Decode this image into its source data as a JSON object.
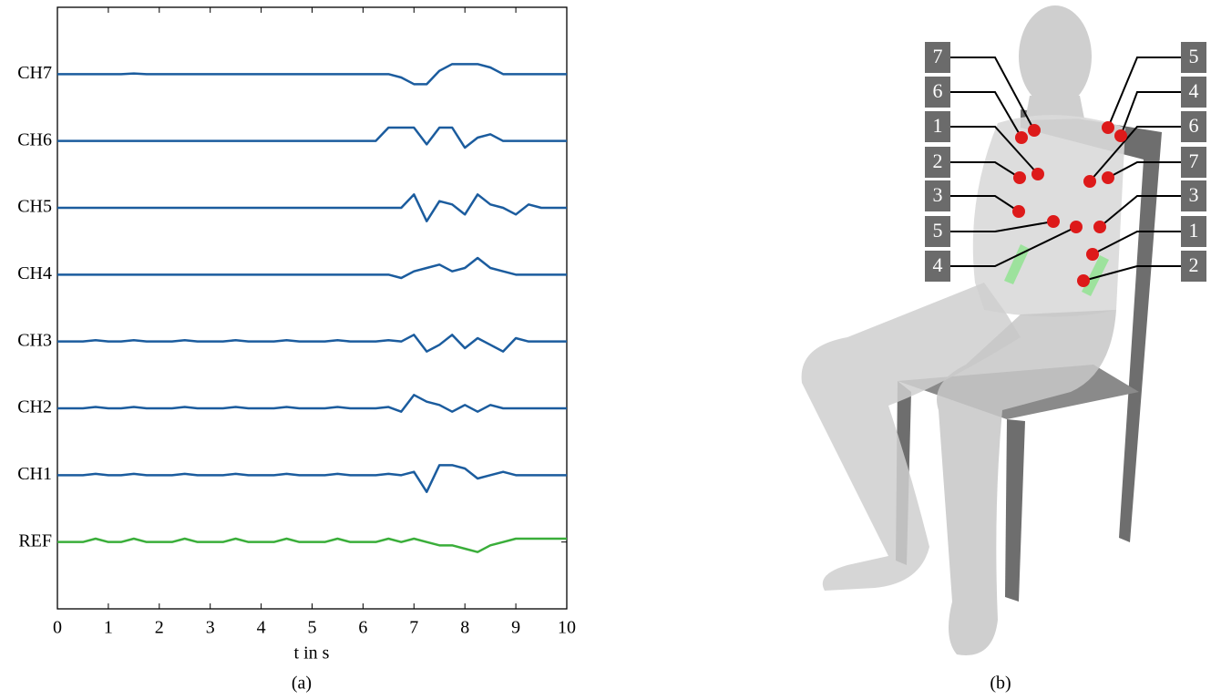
{
  "chart_data": {
    "type": "line",
    "xlabel": "t in s",
    "caption": "(a)",
    "xlim": [
      0,
      10
    ],
    "xticks": [
      0,
      1,
      2,
      3,
      4,
      5,
      6,
      7,
      8,
      9,
      10
    ],
    "ylim": [
      -1,
      8
    ],
    "yticks": [
      {
        "value": 0,
        "label": "REF"
      },
      {
        "value": 1,
        "label": "CH1"
      },
      {
        "value": 2,
        "label": "CH2"
      },
      {
        "value": 3,
        "label": "CH3"
      },
      {
        "value": 4,
        "label": "CH4"
      },
      {
        "value": 5,
        "label": "CH5"
      },
      {
        "value": 6,
        "label": "CH6"
      },
      {
        "value": 7,
        "label": "CH7"
      }
    ],
    "x": [
      0,
      0.25,
      0.5,
      0.75,
      1,
      1.25,
      1.5,
      1.75,
      2,
      2.25,
      2.5,
      2.75,
      3,
      3.25,
      3.5,
      3.75,
      4,
      4.25,
      4.5,
      4.75,
      5,
      5.25,
      5.5,
      5.75,
      6,
      6.25,
      6.5,
      6.75,
      7,
      7.25,
      7.5,
      7.75,
      8,
      8.25,
      8.5,
      8.75,
      9,
      9.25,
      9.5,
      9.75,
      10
    ],
    "series": [
      {
        "color": "#3aae3a",
        "values": [
          0,
          0,
          0,
          0.05,
          0,
          0,
          0.05,
          0,
          0,
          0,
          0.05,
          0,
          0,
          0,
          0.05,
          0,
          0,
          0,
          0.05,
          0,
          0,
          0,
          0.05,
          0,
          0,
          0,
          0.05,
          0,
          0.05,
          0,
          -0.05,
          -0.05,
          -0.1,
          -0.15,
          -0.05,
          0,
          0.05,
          0.05,
          0.05,
          0.05,
          0.05
        ]
      },
      {
        "color": "#1b5c9e",
        "values": [
          1,
          1,
          1,
          1.02,
          1,
          1,
          1.02,
          1,
          1,
          1,
          1.02,
          1,
          1,
          1,
          1.02,
          1,
          1,
          1,
          1.02,
          1,
          1,
          1,
          1.02,
          1,
          1,
          1,
          1.02,
          1,
          1.05,
          0.75,
          1.15,
          1.15,
          1.1,
          0.95,
          1,
          1.05,
          1,
          1,
          1,
          1,
          1
        ]
      },
      {
        "color": "#1b5c9e",
        "values": [
          2,
          2,
          2,
          2.02,
          2,
          2,
          2.02,
          2,
          2,
          2,
          2.02,
          2,
          2,
          2,
          2.02,
          2,
          2,
          2,
          2.02,
          2,
          2,
          2,
          2.02,
          2,
          2,
          2,
          2.02,
          1.95,
          2.2,
          2.1,
          2.05,
          1.95,
          2.05,
          1.95,
          2.05,
          2,
          2,
          2,
          2,
          2,
          2
        ]
      },
      {
        "color": "#1b5c9e",
        "values": [
          3,
          3,
          3,
          3.02,
          3,
          3,
          3.02,
          3,
          3,
          3,
          3.02,
          3,
          3,
          3,
          3.02,
          3,
          3,
          3,
          3.02,
          3,
          3,
          3,
          3.02,
          3,
          3,
          3,
          3.02,
          3,
          3.1,
          2.85,
          2.95,
          3.1,
          2.9,
          3.05,
          2.95,
          2.85,
          3.05,
          3,
          3,
          3,
          3
        ]
      },
      {
        "color": "#1b5c9e",
        "values": [
          4,
          4,
          4,
          4,
          4,
          4,
          4,
          4,
          4,
          4,
          4,
          4,
          4,
          4,
          4,
          4,
          4,
          4,
          4,
          4,
          4,
          4,
          4,
          4,
          4,
          4,
          4,
          3.95,
          4.05,
          4.1,
          4.15,
          4.05,
          4.1,
          4.25,
          4.1,
          4.05,
          4,
          4,
          4,
          4,
          4
        ]
      },
      {
        "color": "#1b5c9e",
        "values": [
          5,
          5,
          5,
          5,
          5,
          5,
          5,
          5,
          5,
          5,
          5,
          5,
          5,
          5,
          5,
          5,
          5,
          5,
          5,
          5,
          5,
          5,
          5,
          5,
          5,
          5,
          5,
          5,
          5.2,
          4.8,
          5.1,
          5.05,
          4.9,
          5.2,
          5.05,
          5,
          4.9,
          5.05,
          5,
          5,
          5
        ]
      },
      {
        "color": "#1b5c9e",
        "values": [
          6,
          6,
          6,
          6,
          6,
          6,
          6,
          6,
          6,
          6,
          6,
          6,
          6,
          6,
          6,
          6,
          6,
          6,
          6,
          6,
          6,
          6,
          6,
          6,
          6,
          6,
          6.2,
          6.2,
          6.2,
          5.95,
          6.2,
          6.2,
          5.9,
          6.05,
          6.1,
          6,
          6,
          6,
          6,
          6,
          6
        ]
      },
      {
        "color": "#1b5c9e",
        "values": [
          7,
          7,
          7,
          7,
          7,
          7,
          7.01,
          7,
          7,
          7,
          7,
          7,
          7,
          7,
          7,
          7,
          7,
          7,
          7,
          7,
          7,
          7,
          7,
          7,
          7,
          7,
          7,
          6.95,
          6.85,
          6.85,
          7.05,
          7.15,
          7.15,
          7.15,
          7.1,
          7,
          7,
          7,
          7,
          7,
          7
        ]
      }
    ]
  },
  "diagram": {
    "caption": "(b)",
    "left_labels": [
      "7",
      "6",
      "1",
      "2",
      "3",
      "5",
      "4"
    ],
    "right_labels": [
      "5",
      "4",
      "6",
      "7",
      "3",
      "1",
      "2"
    ]
  }
}
